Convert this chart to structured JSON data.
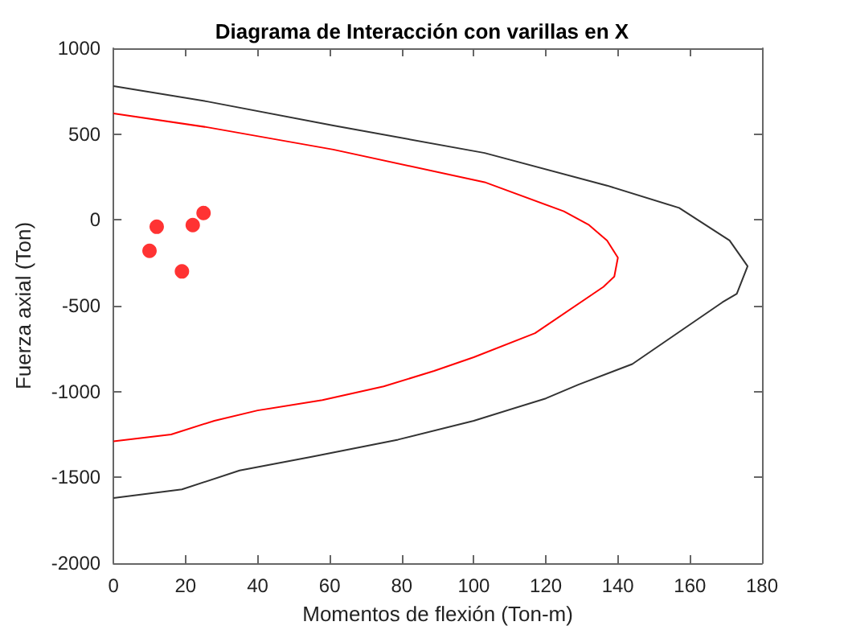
{
  "chart_data": {
    "type": "line",
    "title": "Diagrama de Interacción con varillas en X",
    "xlabel": "Momentos de flexión (Ton-m)",
    "ylabel": "Fuerza axial (Ton)",
    "xlim": [
      0,
      180
    ],
    "xticks": [
      0,
      20,
      40,
      60,
      80,
      100,
      120,
      140,
      160,
      180
    ],
    "ylim": [
      -2000,
      1000
    ],
    "yticks": [
      -2000,
      -1500,
      -1000,
      -500,
      0,
      500,
      1000
    ],
    "grid": false,
    "series": [
      {
        "color": "#333333",
        "marker": "none",
        "x": [
          0,
          26,
          61,
          103,
          137,
          157,
          171,
          176,
          173,
          169,
          144,
          129,
          120,
          100,
          79,
          55,
          35,
          19,
          0
        ],
        "values": [
          780,
          690,
          550,
          390,
          200,
          70,
          -120,
          -270,
          -430,
          -480,
          -840,
          -960,
          -1040,
          -1170,
          -1280,
          -1380,
          -1460,
          -1570,
          -1620
        ]
      },
      {
        "color": "#ff0000",
        "marker": "none",
        "x": [
          0,
          26,
          61,
          103,
          125,
          132,
          137,
          140,
          139,
          136,
          117,
          100,
          89,
          75,
          58,
          40,
          28,
          16,
          0
        ],
        "values": [
          620,
          540,
          410,
          220,
          50,
          -30,
          -120,
          -220,
          -330,
          -390,
          -660,
          -800,
          -880,
          -970,
          -1050,
          -1110,
          -1170,
          -1250,
          -1290
        ]
      },
      {
        "type": "scatter",
        "color": "#ff0000",
        "marker": "circle",
        "x": [
          12,
          22,
          25,
          10,
          19
        ],
        "values": [
          -40,
          -30,
          40,
          -180,
          -300
        ]
      }
    ]
  }
}
